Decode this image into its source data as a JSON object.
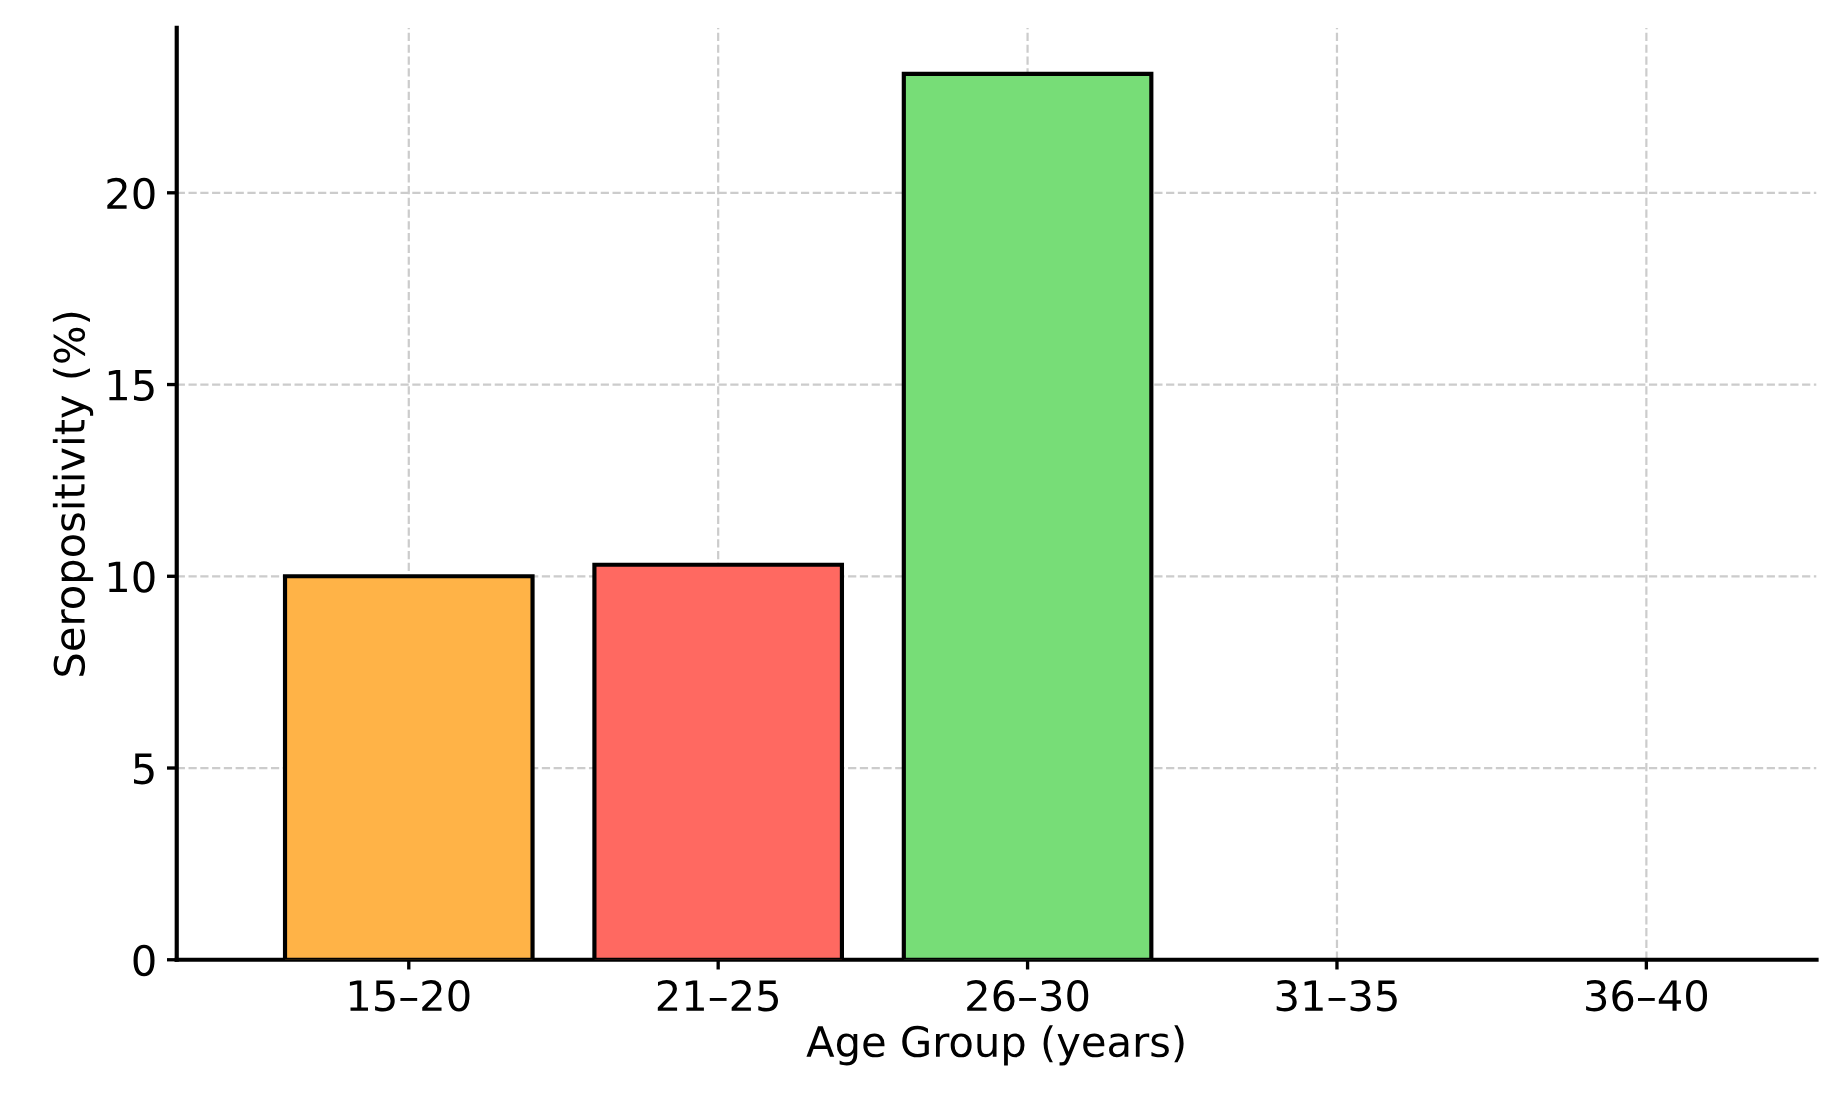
{
  "chart_data": {
    "type": "bar",
    "xlabel": "Age Group (years)",
    "ylabel": "Seropositivity (%)",
    "categories": [
      "15–20",
      "21–25",
      "26–30",
      "31–35",
      "36–40"
    ],
    "values": [
      10.0,
      10.3,
      23.1,
      0,
      0
    ],
    "colors": [
      "#ffb347",
      "#ff6961",
      "#77dd77",
      null,
      null
    ],
    "ylim": [
      0,
      24.3
    ],
    "yticks": [
      0,
      5,
      10,
      15,
      20
    ],
    "grid": true
  }
}
